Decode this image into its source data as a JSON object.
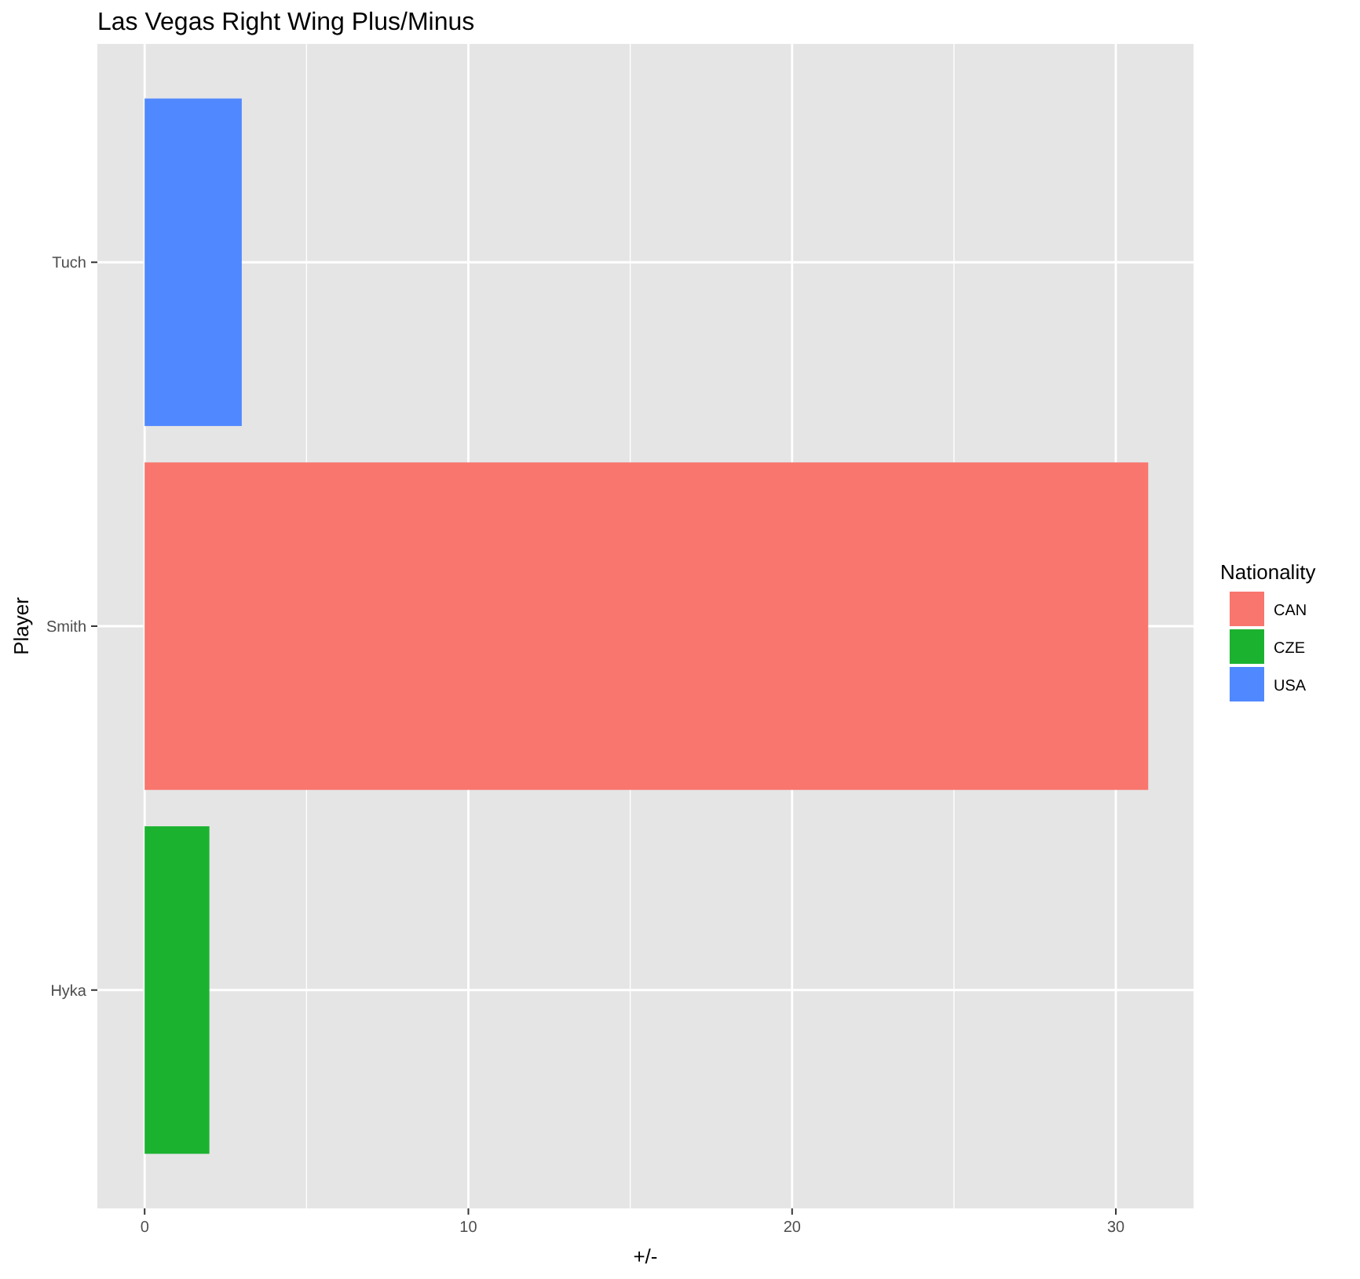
{
  "chart_data": {
    "type": "bar",
    "orientation": "horizontal",
    "title": "Las Vegas Right Wing Plus/Minus",
    "xlabel": "+/-",
    "ylabel": "Player",
    "legend_title": "Nationality",
    "legend": "right",
    "grid": true,
    "categories": [
      "Tuch",
      "Smith",
      "Hyka"
    ],
    "series": [
      {
        "name": "CAN",
        "color": "#f8766d",
        "values": [
          null,
          31,
          null
        ]
      },
      {
        "name": "CZE",
        "color": "#1bb22f",
        "values": [
          null,
          null,
          2
        ]
      },
      {
        "name": "USA",
        "color": "#5088ff",
        "values": [
          3,
          null,
          null
        ]
      }
    ],
    "xlim": [
      -1.46,
      32.4
    ],
    "xticks": [
      0,
      10,
      20,
      30
    ]
  }
}
